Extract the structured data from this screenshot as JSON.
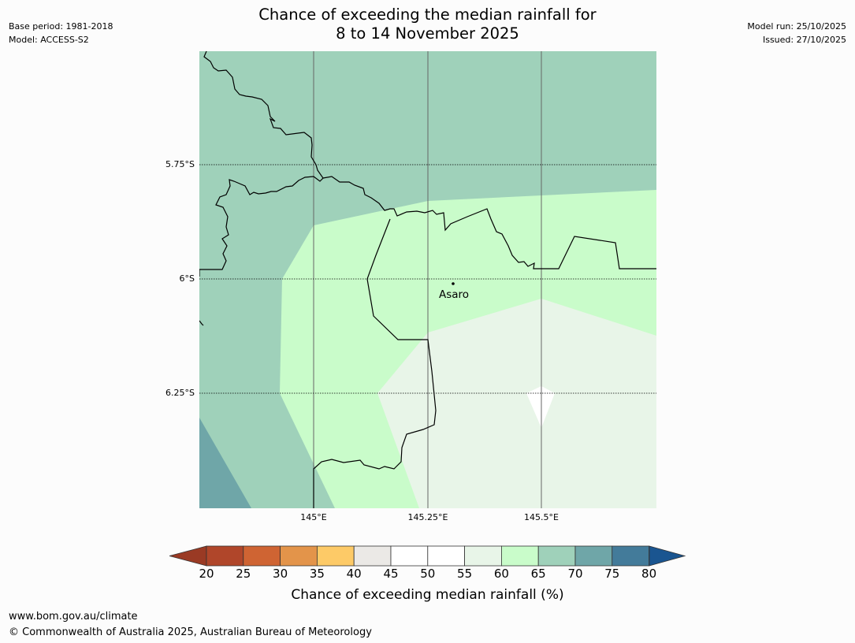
{
  "title_line1": "Chance of exceeding the median rainfall for",
  "title_line2": "8 to 14 November 2025",
  "meta_left": {
    "base_period": "Base period: 1981-2018",
    "model": "Model: ACCESS-S2"
  },
  "meta_right": {
    "model_run": "Model run: 25/10/2025",
    "issued": "Issued: 27/10/2025"
  },
  "map": {
    "place_label": "Asaro",
    "lat_labels": [
      "5.75°S",
      "6°S",
      "6.25°S"
    ],
    "lon_labels": [
      "145°E",
      "145.25°E",
      "145.5°E"
    ]
  },
  "colorbar": {
    "label": "Chance of exceeding median rainfall (%)",
    "ticks": [
      "20",
      "25",
      "30",
      "35",
      "40",
      "45",
      "50",
      "55",
      "60",
      "65",
      "70",
      "75",
      "80"
    ],
    "colors": [
      "#b0462a",
      "#cf6433",
      "#e3944a",
      "#fdca67",
      "#ebe9e6",
      "#ffffff",
      "#ffffff",
      "#e8f5e8",
      "#c9fcca",
      "#9fd1ba",
      "#6fa6a8",
      "#437b9a"
    ],
    "under_color": "#9a3a24",
    "over_color": "#1a5590"
  },
  "footer": {
    "url": "www.bom.gov.au/climate",
    "copyright": "© Commonwealth of Australia 2025, Australian Bureau of Meteorology"
  }
}
